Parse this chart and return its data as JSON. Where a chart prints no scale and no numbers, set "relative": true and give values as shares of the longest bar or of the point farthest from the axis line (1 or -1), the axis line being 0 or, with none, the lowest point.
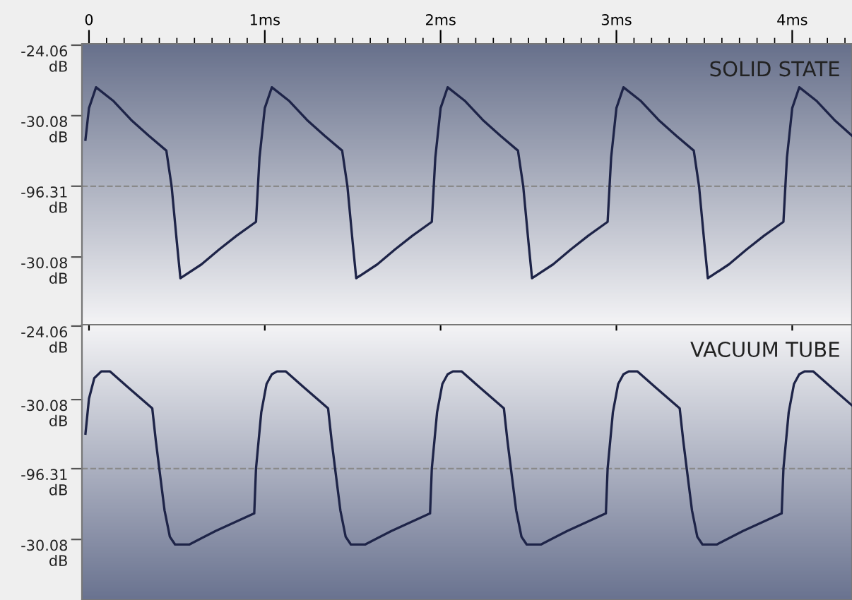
{
  "chart_data": [
    {
      "type": "line",
      "title": "SOLID STATE",
      "xlim": [
        -0.04,
        4.34
      ],
      "relative": true,
      "annotations": [
        "-24.06\ndB",
        "-30.08\ndB",
        "-96.31\ndB",
        "-30.08\ndB"
      ],
      "xticks": [
        {
          "value": 0,
          "label": "0"
        },
        {
          "value": 1,
          "label": "1ms"
        },
        {
          "value": 2,
          "label": "2ms"
        },
        {
          "value": 3,
          "label": "3ms"
        },
        {
          "value": 4,
          "label": "4ms"
        }
      ],
      "ref_lines": [
        {
          "axis": "y",
          "value": 0,
          "color": "#8a8a8a",
          "line_style": "dashed"
        }
      ],
      "grid": false,
      "series": [
        {
          "color": "#1e2448",
          "x": [
            -0.02,
            0.0,
            0.04,
            0.14,
            0.24,
            0.34,
            0.44,
            0.47,
            0.5,
            0.52,
            0.64,
            0.74,
            0.84,
            0.95,
            0.97,
            1.0,
            1.04,
            1.14,
            1.24,
            1.34,
            1.44,
            1.47,
            1.5,
            1.52,
            1.64,
            1.74,
            1.84,
            1.95,
            1.97,
            2.0,
            2.04,
            2.14,
            2.24,
            2.34,
            2.44,
            2.47,
            2.5,
            2.52,
            2.64,
            2.74,
            2.84,
            2.95,
            2.97,
            3.0,
            3.04,
            3.14,
            3.24,
            3.34,
            3.44,
            3.47,
            3.5,
            3.52,
            3.64,
            3.74,
            3.84,
            3.95,
            3.97,
            4.0,
            4.04,
            4.14,
            4.24,
            4.34
          ],
          "values": [
            0.47,
            0.79,
            1,
            0.86,
            0.67,
            0.51,
            0.36,
            0.0,
            -0.57,
            -0.93,
            -0.79,
            -0.64,
            -0.5,
            -0.36,
            0.29,
            0.79,
            1,
            0.86,
            0.67,
            0.51,
            0.36,
            0.0,
            -0.57,
            -0.93,
            -0.79,
            -0.64,
            -0.5,
            -0.36,
            0.29,
            0.79,
            1,
            0.86,
            0.67,
            0.51,
            0.36,
            0.0,
            -0.57,
            -0.93,
            -0.79,
            -0.64,
            -0.5,
            -0.36,
            0.29,
            0.79,
            1,
            0.86,
            0.67,
            0.51,
            0.36,
            0.0,
            -0.57,
            -0.93,
            -0.79,
            -0.64,
            -0.5,
            -0.36,
            0.29,
            0.79,
            1,
            0.86,
            0.67,
            0.51
          ]
        }
      ]
    },
    {
      "type": "line",
      "title": "VACUUM TUBE",
      "xlim": [
        -0.04,
        4.34
      ],
      "relative": true,
      "tick_labels": false,
      "xticks": [
        0,
        1,
        2,
        3,
        4
      ],
      "annotations": [
        "-24.06\ndB",
        "-30.08\ndB",
        "-96.31\ndB",
        "-30.08\ndB"
      ],
      "ref_lines": [
        {
          "axis": "y",
          "value": 0,
          "color": "#8a8a8a",
          "line_style": "dashed"
        }
      ],
      "grid": false,
      "series": [
        {
          "color": "#1e2448",
          "x": [
            -0.02,
            0.0,
            0.03,
            0.07,
            0.12,
            0.22,
            0.36,
            0.38,
            0.4,
            0.43,
            0.46,
            0.49,
            0.57,
            0.72,
            0.94,
            0.95,
            0.98,
            1.01,
            1.04,
            1.07,
            1.12,
            1.22,
            1.36,
            1.38,
            1.4,
            1.43,
            1.46,
            1.49,
            1.57,
            1.72,
            1.94,
            1.95,
            1.98,
            2.01,
            2.04,
            2.07,
            2.12,
            2.22,
            2.36,
            2.38,
            2.4,
            2.43,
            2.46,
            2.49,
            2.57,
            2.72,
            2.94,
            2.95,
            2.98,
            3.01,
            3.04,
            3.07,
            3.12,
            3.22,
            3.36,
            3.38,
            3.4,
            3.43,
            3.46,
            3.49,
            3.57,
            3.72,
            3.94,
            3.95,
            3.98,
            4.01,
            4.04,
            4.07,
            4.12,
            4.22,
            4.34
          ],
          "values": [
            0.36,
            0.72,
            0.93,
            1,
            1,
            0.84,
            0.62,
            0.29,
            0.0,
            -0.43,
            -0.7,
            -0.78,
            -0.78,
            -0.64,
            -0.46,
            0.0,
            0.58,
            0.87,
            0.97,
            1,
            1,
            0.84,
            0.62,
            0.29,
            0.0,
            -0.43,
            -0.7,
            -0.78,
            -0.78,
            -0.64,
            -0.46,
            0.0,
            0.58,
            0.87,
            0.97,
            1,
            1,
            0.84,
            0.62,
            0.29,
            0.0,
            -0.43,
            -0.7,
            -0.78,
            -0.78,
            -0.64,
            -0.46,
            0.0,
            0.58,
            0.87,
            0.97,
            1,
            1,
            0.84,
            0.62,
            0.29,
            0.0,
            -0.43,
            -0.7,
            -0.78,
            -0.78,
            -0.64,
            -0.46,
            0.0,
            0.58,
            0.87,
            0.97,
            1,
            1,
            0.84,
            0.65
          ]
        }
      ]
    }
  ]
}
